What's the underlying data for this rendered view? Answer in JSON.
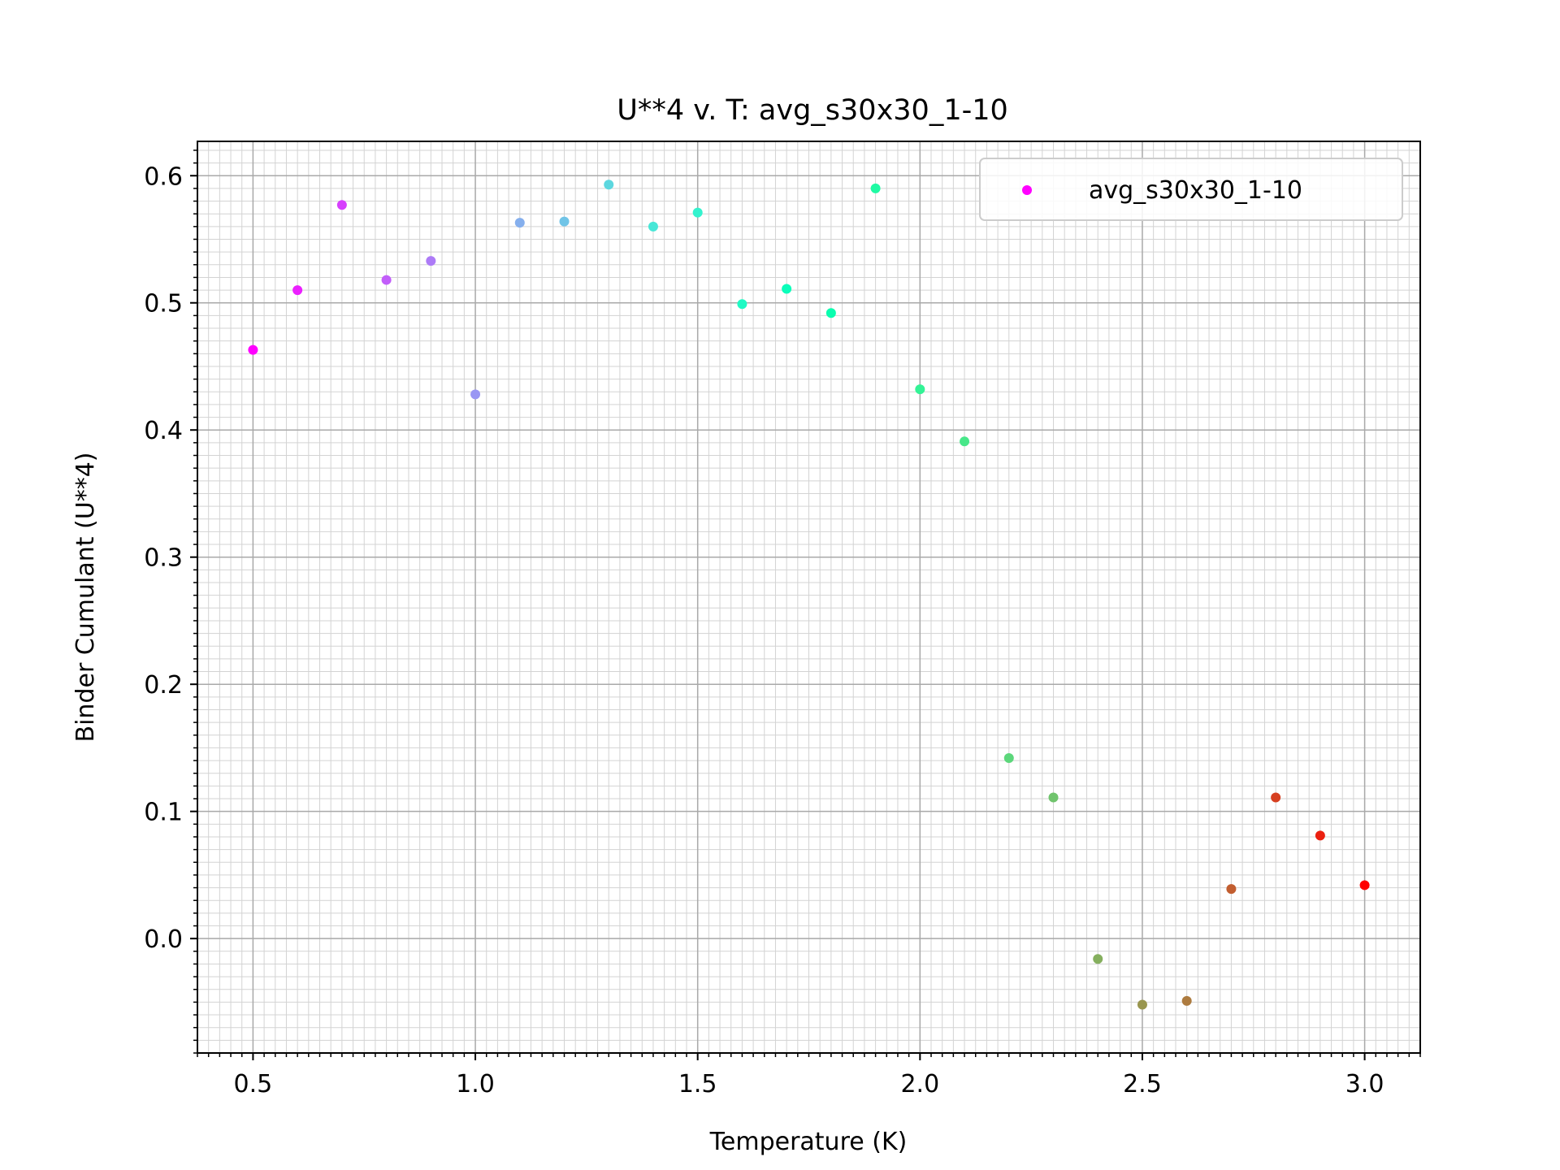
{
  "chart_data": {
    "type": "scatter",
    "title": "U**4 v. T: avg_s30x30_1-10",
    "xlabel": "Temperature (K)",
    "ylabel": "Binder Cumulant (U**4)",
    "xlim": [
      0.375,
      3.125
    ],
    "ylim": [
      -0.09,
      0.627
    ],
    "xticks": [
      0.5,
      1.0,
      1.5,
      2.0,
      2.5,
      3.0
    ],
    "xtick_labels": [
      "0.5",
      "1.0",
      "1.5",
      "2.0",
      "2.5",
      "3.0"
    ],
    "yticks": [
      0.0,
      0.1,
      0.2,
      0.3,
      0.4,
      0.5,
      0.6
    ],
    "ytick_labels": [
      "0.0",
      "0.1",
      "0.2",
      "0.3",
      "0.4",
      "0.5",
      "0.6"
    ],
    "grid": true,
    "minor_grid": true,
    "colormap": "rainbow",
    "legend": {
      "placement": "top-right",
      "entries": [
        "avg_s30x30_1-10"
      ]
    },
    "series": [
      {
        "name": "avg_s30x30_1-10",
        "x": [
          0.5,
          0.6,
          0.7,
          0.8,
          0.9,
          1.0,
          1.1,
          1.2,
          1.3,
          1.4,
          1.5,
          1.6,
          1.7,
          1.8,
          1.9,
          2.0,
          2.1,
          2.2,
          2.3,
          2.4,
          2.5,
          2.6,
          2.7,
          2.8,
          2.9,
          3.0
        ],
        "y": [
          0.463,
          0.51,
          0.577,
          0.518,
          0.533,
          0.428,
          0.563,
          0.564,
          0.593,
          0.56,
          0.571,
          0.499,
          0.511,
          0.492,
          0.59,
          0.432,
          0.391,
          0.142,
          0.111,
          -0.016,
          -0.052,
          -0.049,
          0.039,
          0.111,
          0.081,
          0.042
        ]
      }
    ]
  }
}
